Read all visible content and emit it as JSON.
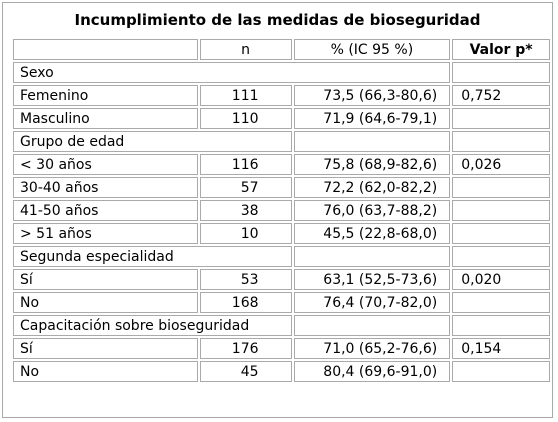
{
  "title": "Incumplimiento de las medidas de bioseguridad",
  "header": {
    "n": "n",
    "pct": "% (IC 95 %)",
    "p": "Valor p*"
  },
  "groups": [
    {
      "label": "Sexo",
      "rows": [
        {
          "label": "Femenino",
          "n": 111,
          "pct": "73,5 (66,3-80,6)",
          "p": "0,752"
        },
        {
          "label": "Masculino",
          "n": 110,
          "pct": "71,9 (64,6-79,1)"
        }
      ]
    },
    {
      "label": "Grupo de edad",
      "rows": [
        {
          "label": "< 30 años",
          "n": 116,
          "pct": "75,8 (68,9-82,6)",
          "p": "0,026"
        },
        {
          "label": "30-40 años",
          "n": 57,
          "pct": "72,2 (62,0-82,2)"
        },
        {
          "label": "41-50 años",
          "n": 38,
          "pct": "76,0 (63,7-88,2)"
        },
        {
          "label": "> 51 años",
          "n": 10,
          "pct": "45,5 (22,8-68,0)"
        }
      ]
    },
    {
      "label": "Segunda especialidad",
      "rows": [
        {
          "label": "Sí",
          "n": 53,
          "pct": "63,1 (52,5-73,6)",
          "p": "0,020"
        },
        {
          "label": "No",
          "n": 168,
          "pct": "76,4 (70,7-82,0)"
        }
      ]
    },
    {
      "label": "Capacitación sobre bioseguridad",
      "rows": [
        {
          "label": "Sí",
          "n": 176,
          "pct": "71,0 (65,2-76,6)",
          "p": "0,154"
        },
        {
          "label": "No",
          "n": 45,
          "pct": "80,4 (69,6-91,0)"
        }
      ]
    }
  ]
}
